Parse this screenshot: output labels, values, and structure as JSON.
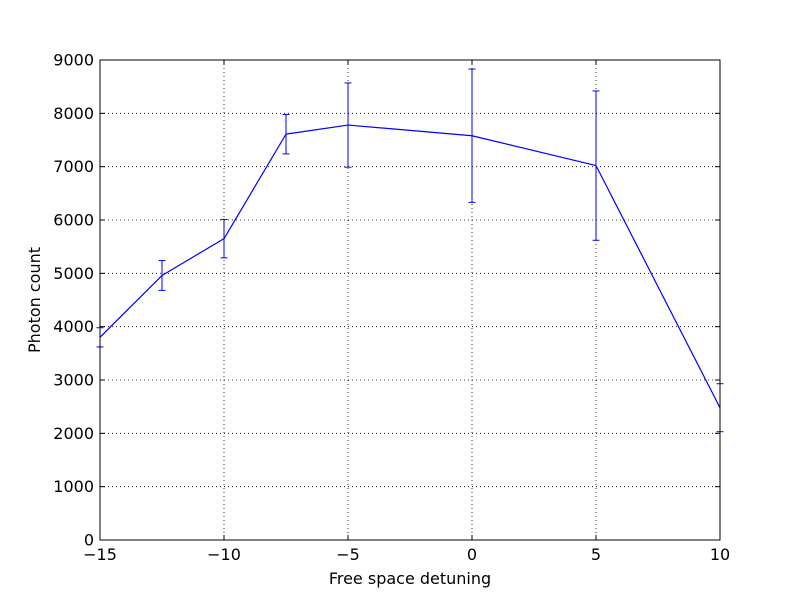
{
  "chart_data": {
    "type": "line",
    "title": "",
    "xlabel": "Free space detuning",
    "ylabel": "Photon count",
    "xlim": [
      -15,
      10
    ],
    "ylim": [
      0,
      9000
    ],
    "grid": true,
    "grid_style": "dotted",
    "x_ticks": [
      -15,
      -10,
      -5,
      0,
      5,
      10
    ],
    "x_tick_labels": [
      "−15",
      "−10",
      "−5",
      "0",
      "5",
      "10"
    ],
    "y_ticks": [
      0,
      1000,
      2000,
      3000,
      4000,
      5000,
      6000,
      7000,
      8000,
      9000
    ],
    "y_tick_labels": [
      "0",
      "1000",
      "2000",
      "3000",
      "4000",
      "5000",
      "6000",
      "7000",
      "8000",
      "9000"
    ],
    "series": [
      {
        "color": "#0000ff",
        "x": [
          -15,
          -12.5,
          -10,
          -7.5,
          -5,
          0,
          5,
          10
        ],
        "y": [
          3800,
          4960,
          5650,
          7610,
          7780,
          7580,
          7020,
          2480
        ],
        "yerr": [
          180,
          280,
          360,
          370,
          790,
          1250,
          1400,
          450
        ]
      }
    ]
  }
}
